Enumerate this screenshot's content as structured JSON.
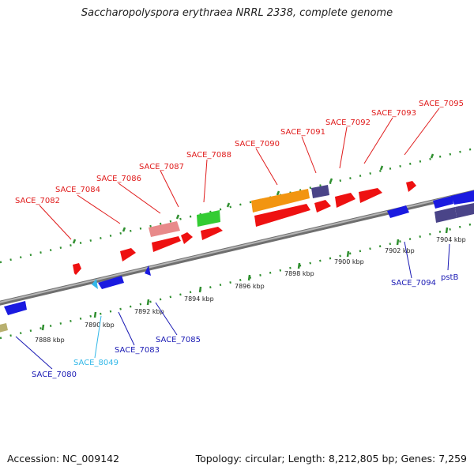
{
  "title": "Saccharopolyspora erythraea NRRL 2338, complete genome",
  "footer": {
    "accession": "Accession: NC_009142",
    "summary": "Topology: circular; Length: 8,212,805 bp; Genes: 7,259"
  },
  "colors": {
    "backbone": "#8c8c8c",
    "tick_marks": "#2f8f2f",
    "forward_label": "#e01b1b",
    "reverse_label": "#1a1ab4",
    "rna_label": "#33b8e8",
    "gene_red": "#ee1111",
    "gene_blue": "#1a1ae0",
    "gene_orange": "#f29510",
    "gene_green": "#33cc33",
    "gene_purple": "#4a4488",
    "gene_pink": "#e88a8a",
    "gene_olive": "#b8b070"
  },
  "scale_labels": [
    "7888 kbp",
    "7890 kbp",
    "7892 kbp",
    "7894 kbp",
    "7896 kbp",
    "7898 kbp",
    "7900 kbp",
    "7902 kbp",
    "7904 kbp"
  ],
  "gene_labels": {
    "forward": [
      "SACE_7082",
      "SACE_7084",
      "SACE_7086",
      "SACE_7087",
      "SACE_7088",
      "SACE_7090",
      "SACE_7091",
      "SACE_7092",
      "SACE_7093",
      "SACE_7095"
    ],
    "reverse": [
      "SACE_7080",
      "SACE_8049",
      "SACE_7083",
      "SACE_7085",
      "SACE_7094",
      "pstB"
    ]
  }
}
